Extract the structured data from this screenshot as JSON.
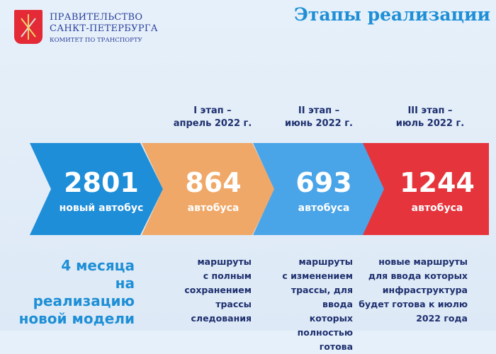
{
  "header": {
    "org_line1": "ПРАВИТЕЛЬСТВО",
    "org_line2": "САНКТ-ПЕТЕРБУРГА",
    "org_line3": "КОМИТЕТ ПО ТРАНСПОРТУ",
    "title": "Этапы реализации",
    "crest_icon": "spb-coat-of-arms-icon"
  },
  "colors": {
    "blue": "#1f8ed8",
    "orange": "#f0a868",
    "light_blue": "#4aa4e8",
    "red": "#e6343c",
    "title": "#1e8fd6",
    "text": "#1e2f6e"
  },
  "stages": [
    {
      "label": "I этап –",
      "date": "апрель 2022 г."
    },
    {
      "label": "II этап –",
      "date": "июнь 2022 г."
    },
    {
      "label": "III этап –",
      "date": "июль 2022 г."
    }
  ],
  "chevrons": [
    {
      "number": "2801",
      "caption": "новый автобус"
    },
    {
      "number": "864",
      "caption": "автобуса"
    },
    {
      "number": "693",
      "caption": "автобуса"
    },
    {
      "number": "1244",
      "caption": "автобуса"
    }
  ],
  "summary": {
    "line1": "4 месяца",
    "line2": "на реализацию",
    "line3": "новой модели"
  },
  "descriptions": [
    [
      "маршруты",
      "с полным",
      "сохранением",
      "трассы",
      "следования"
    ],
    [
      "маршруты",
      "с изменением",
      "трассы, для ввода",
      "которых",
      "полностью готова"
    ],
    [
      "новые маршруты",
      "для ввода которых",
      "инфраструктура",
      "будет готова к июлю",
      "2022 года"
    ]
  ]
}
